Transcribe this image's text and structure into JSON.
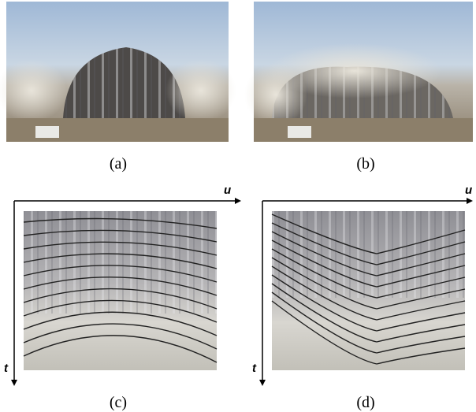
{
  "panels": [
    {
      "label": "(a)"
    },
    {
      "label": "(b)"
    },
    {
      "label": "(c)",
      "axes": {
        "x": "u",
        "y": "t"
      }
    },
    {
      "label": "(d)",
      "axes": {
        "x": "u",
        "y": "t"
      }
    }
  ]
}
